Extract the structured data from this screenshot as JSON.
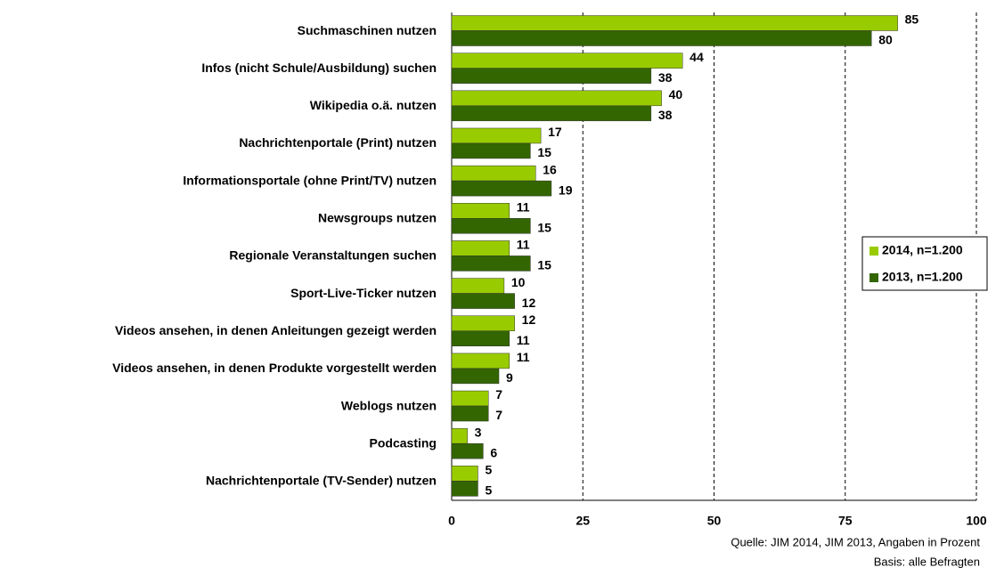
{
  "chart_data": {
    "type": "barh",
    "categories": [
      "Suchmaschinen nutzen",
      "Infos (nicht Schule/Ausbildung) suchen",
      "Wikipedia o.ä. nutzen",
      "Nachrichtenportale (Print) nutzen",
      "Informationsportale (ohne Print/TV) nutzen",
      "Newsgroups nutzen",
      "Regionale Veranstaltungen suchen",
      "Sport-Live-Ticker nutzen",
      "Videos ansehen, in denen Anleitungen gezeigt werden",
      "Videos ansehen, in denen Produkte vorgestellt werden",
      "Weblogs nutzen",
      "Podcasting",
      "Nachrichtenportale (TV-Sender) nutzen"
    ],
    "series": [
      {
        "name": "2014, n=1.200",
        "color": "#99cc00",
        "values": [
          85,
          44,
          40,
          17,
          16,
          11,
          11,
          10,
          12,
          11,
          7,
          3,
          5
        ]
      },
      {
        "name": "2013, n=1.200",
        "color": "#336600",
        "values": [
          80,
          38,
          38,
          15,
          19,
          15,
          15,
          12,
          11,
          9,
          7,
          6,
          5
        ]
      }
    ],
    "xlim": [
      0,
      100
    ],
    "xticks": [
      0,
      25,
      50,
      75,
      100
    ],
    "grid": true,
    "legend": "right",
    "notes": [
      "Quelle: JIM 2014, JIM 2013, Angaben in Prozent",
      "Basis: alle Befragten"
    ]
  }
}
